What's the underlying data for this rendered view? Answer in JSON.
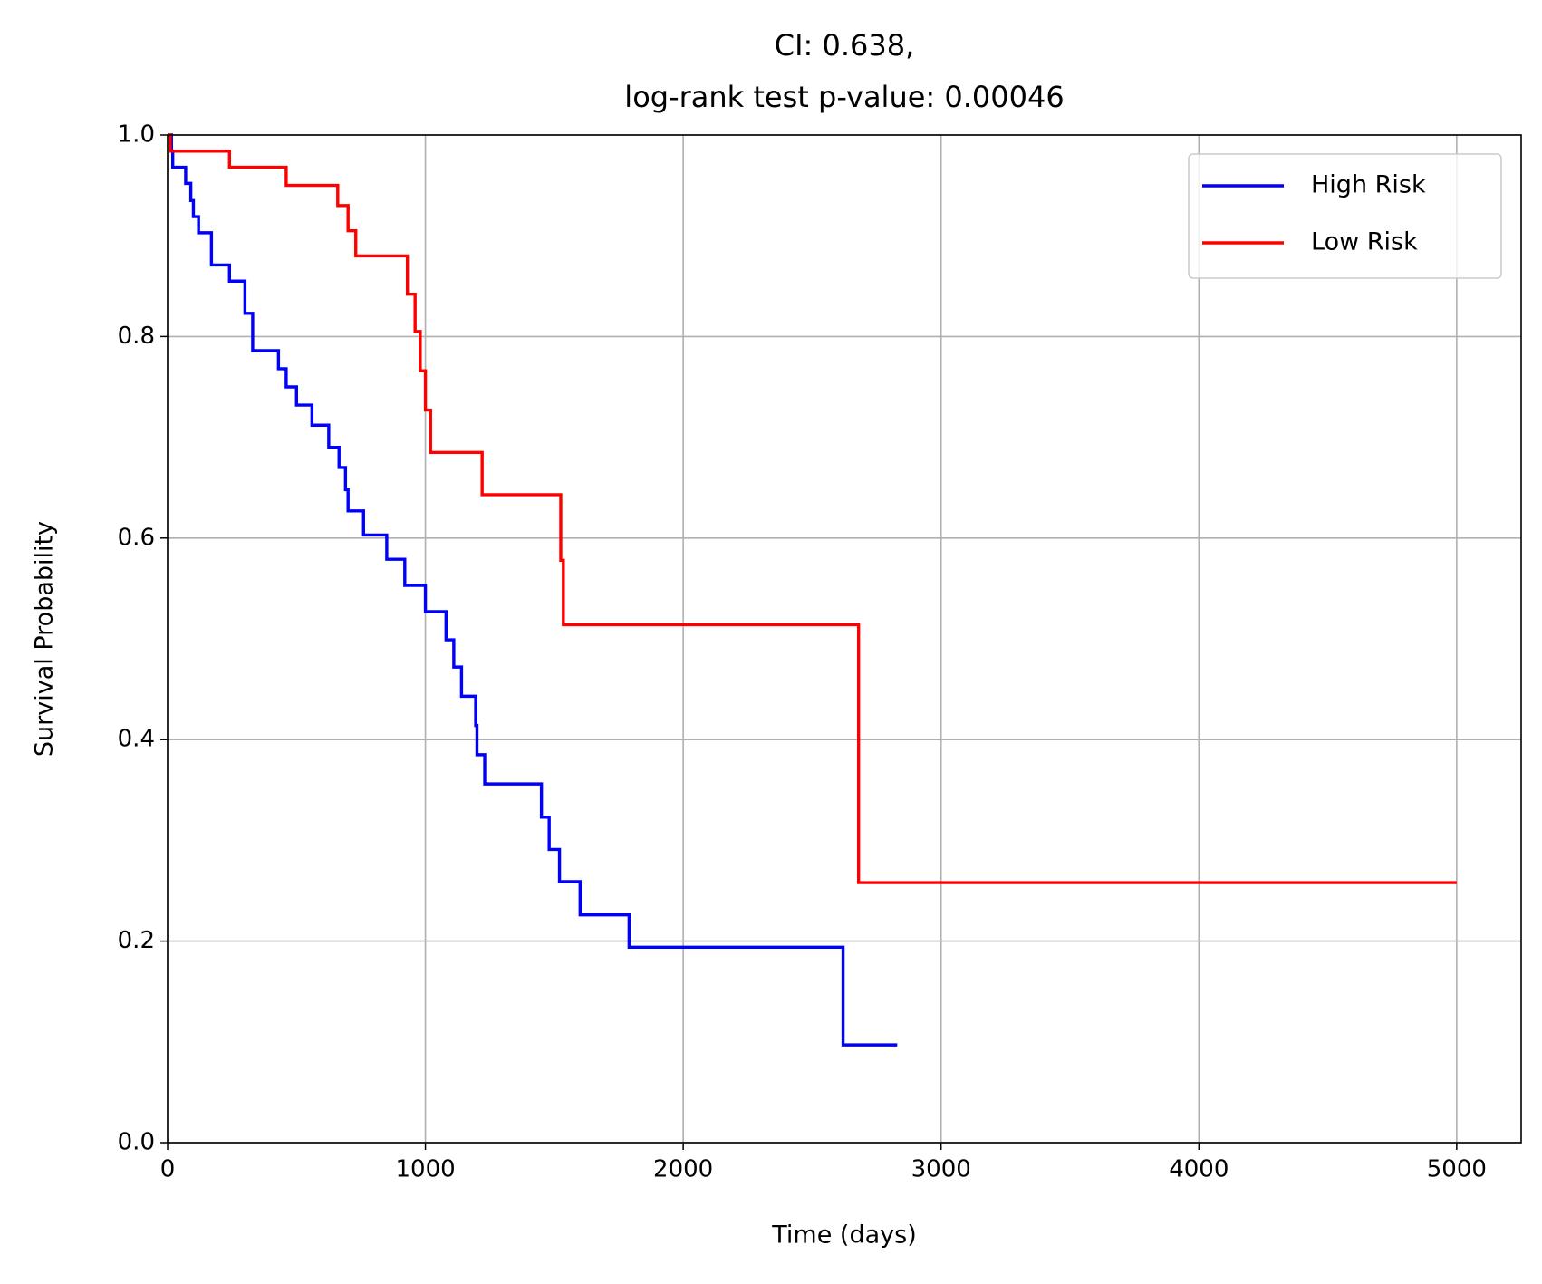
{
  "chart_data": {
    "type": "step",
    "title": [
      "CI: 0.638,",
      "log-rank test p-value: 0.00046"
    ],
    "x_label": "Time (days)",
    "y_label": "Survival Probability",
    "xlim": [
      0,
      5250
    ],
    "ylim": [
      0,
      1
    ],
    "xticks": [
      0,
      1000,
      2000,
      3000,
      4000,
      5000
    ],
    "yticks": [
      {
        "value": 0,
        "label": "0.0"
      },
      0.2,
      0.4,
      0.6,
      0.8,
      {
        "value": 1,
        "label": "1.0"
      }
    ],
    "grid": true,
    "legend": "upper right",
    "series": [
      {
        "name": "High Risk",
        "color": "#0000ff",
        "x": [
          0,
          15,
          20,
          70,
          90,
          100,
          120,
          170,
          240,
          300,
          330,
          430,
          460,
          500,
          560,
          625,
          665,
          690,
          700,
          760,
          850,
          920,
          1000,
          1080,
          1110,
          1140,
          1195,
          1200,
          1230,
          1450,
          1480,
          1520,
          1600,
          1790,
          2620,
          2830
        ],
        "values": [
          1.0,
          0.984,
          0.968,
          0.952,
          0.935,
          0.919,
          0.903,
          0.871,
          0.855,
          0.823,
          0.786,
          0.768,
          0.75,
          0.732,
          0.712,
          0.69,
          0.67,
          0.648,
          0.627,
          0.603,
          0.579,
          0.553,
          0.527,
          0.499,
          0.472,
          0.443,
          0.414,
          0.385,
          0.356,
          0.323,
          0.291,
          0.259,
          0.226,
          0.194,
          0.097,
          0.097
        ]
      },
      {
        "name": "Low Risk",
        "color": "#ff0000",
        "x": [
          0,
          10,
          240,
          460,
          660,
          700,
          730,
          930,
          960,
          980,
          1000,
          1020,
          1220,
          1525,
          1535,
          2680,
          5000
        ],
        "values": [
          1.0,
          0.984,
          0.968,
          0.95,
          0.93,
          0.905,
          0.88,
          0.842,
          0.805,
          0.766,
          0.727,
          0.685,
          0.643,
          0.578,
          0.514,
          0.258,
          0.258
        ]
      }
    ]
  }
}
